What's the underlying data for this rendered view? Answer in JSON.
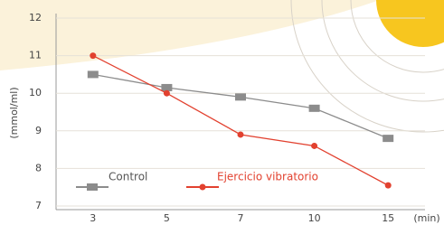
{
  "chart_data": {
    "type": "line",
    "y_label": "(mmol/ml)",
    "x_label": "(min)",
    "categories": [
      "3",
      "5",
      "7",
      "10",
      "15"
    ],
    "series": [
      {
        "name": "Control",
        "color": "#8c8c8c",
        "marker": "square",
        "values": [
          10.5,
          10.15,
          9.9,
          9.6,
          8.8
        ]
      },
      {
        "name": "Ejercicio vibratorio",
        "color": "#e2412f",
        "marker": "circle",
        "values": [
          11.0,
          10.0,
          8.9,
          8.6,
          7.55
        ]
      }
    ],
    "ylim": [
      7,
      12
    ],
    "yticks": [
      7,
      8,
      9,
      10,
      11,
      12
    ],
    "grid": true
  }
}
